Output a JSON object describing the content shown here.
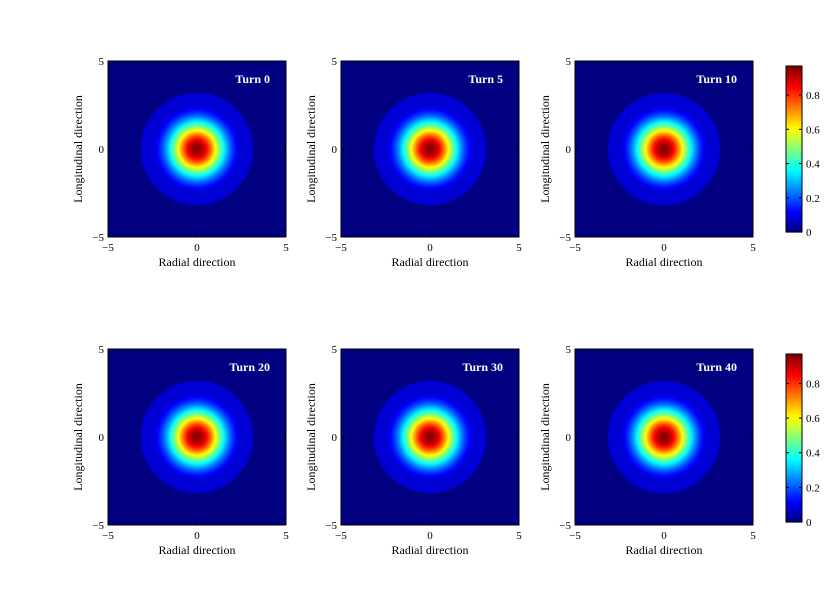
{
  "chart_data": {
    "type": "heatmap",
    "xlabel": "Radial direction",
    "ylabel": "Longitudinal direction",
    "xlim": [
      -5,
      5
    ],
    "ylim": [
      -5,
      5
    ],
    "xticks": [
      -5,
      0,
      5
    ],
    "yticks": [
      -5,
      0,
      5
    ],
    "colormap": "jet",
    "colorbar": {
      "range": [
        0,
        0.97
      ],
      "ticks": [
        0,
        0.2,
        0.4,
        0.6,
        0.8
      ],
      "tick_labels": [
        "0",
        "0.2",
        "0.4",
        "0.6",
        "0.8"
      ]
    },
    "distribution": {
      "shape": "gaussian",
      "center": [
        0,
        0
      ],
      "peak": 0.97,
      "sigma": 1.1,
      "pedestal_level": 0.08,
      "pedestal_radius": 3.2
    },
    "panels": [
      {
        "title": "Turn 0"
      },
      {
        "title": "Turn 5"
      },
      {
        "title": "Turn 10"
      },
      {
        "title": "Turn 20"
      },
      {
        "title": "Turn 30"
      },
      {
        "title": "Turn 40"
      }
    ]
  }
}
